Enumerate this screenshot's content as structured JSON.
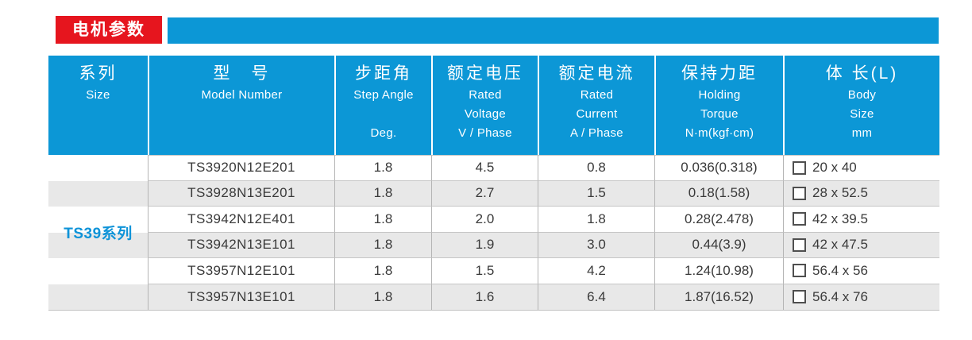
{
  "colors": {
    "accent_blue": "#0c97d6",
    "badge_red": "#e6151e",
    "row_alt_gray": "#e8e8e8",
    "grid_line": "#c3c3c3",
    "series_text_blue": "#0e93d8",
    "data_text": "#3a3a3a"
  },
  "title_bar": {
    "badge_label": "电机参数"
  },
  "table": {
    "header": {
      "columns": [
        {
          "zh": "系列",
          "en1": "Size",
          "en2": "",
          "en3": ""
        },
        {
          "zh": "型　号",
          "en1": "Model Number",
          "en2": "",
          "en3": ""
        },
        {
          "zh": "步距角",
          "en1": "Step Angle",
          "en2": "",
          "en3": "Deg."
        },
        {
          "zh": "额定电压",
          "en1": "Rated",
          "en2": "Voltage",
          "en3": "V / Phase"
        },
        {
          "zh": "额定电流",
          "en1": "Rated",
          "en2": "Current",
          "en3": "A / Phase"
        },
        {
          "zh": "保持力距",
          "en1": "Holding",
          "en2": "Torque",
          "en3": "N·m(kgf·cm)"
        },
        {
          "zh": "体 长(L)",
          "en1": "Body",
          "en2": "Size",
          "en3": "mm"
        }
      ]
    },
    "series_label": "TS39系列",
    "rows": [
      {
        "model": "TS3920N12E201",
        "step_angle": "1.8",
        "voltage": "4.5",
        "current": "0.8",
        "torque": "0.036(0.318)",
        "body_size": "20 x 40"
      },
      {
        "model": "TS3928N13E201",
        "step_angle": "1.8",
        "voltage": "2.7",
        "current": "1.5",
        "torque": "0.18(1.58)",
        "body_size": "28 x 52.5"
      },
      {
        "model": "TS3942N12E401",
        "step_angle": "1.8",
        "voltage": "2.0",
        "current": "1.8",
        "torque": "0.28(2.478)",
        "body_size": "42 x 39.5"
      },
      {
        "model": "TS3942N13E101",
        "step_angle": "1.8",
        "voltage": "1.9",
        "current": "3.0",
        "torque": "0.44(3.9)",
        "body_size": "42 x 47.5"
      },
      {
        "model": "TS3957N12E101",
        "step_angle": "1.8",
        "voltage": "1.5",
        "current": "4.2",
        "torque": "1.24(10.98)",
        "body_size": "56.4 x 56"
      },
      {
        "model": "TS3957N13E101",
        "step_angle": "1.8",
        "voltage": "1.6",
        "current": "6.4",
        "torque": "1.87(16.52)",
        "body_size": "56.4 x 76"
      }
    ]
  }
}
